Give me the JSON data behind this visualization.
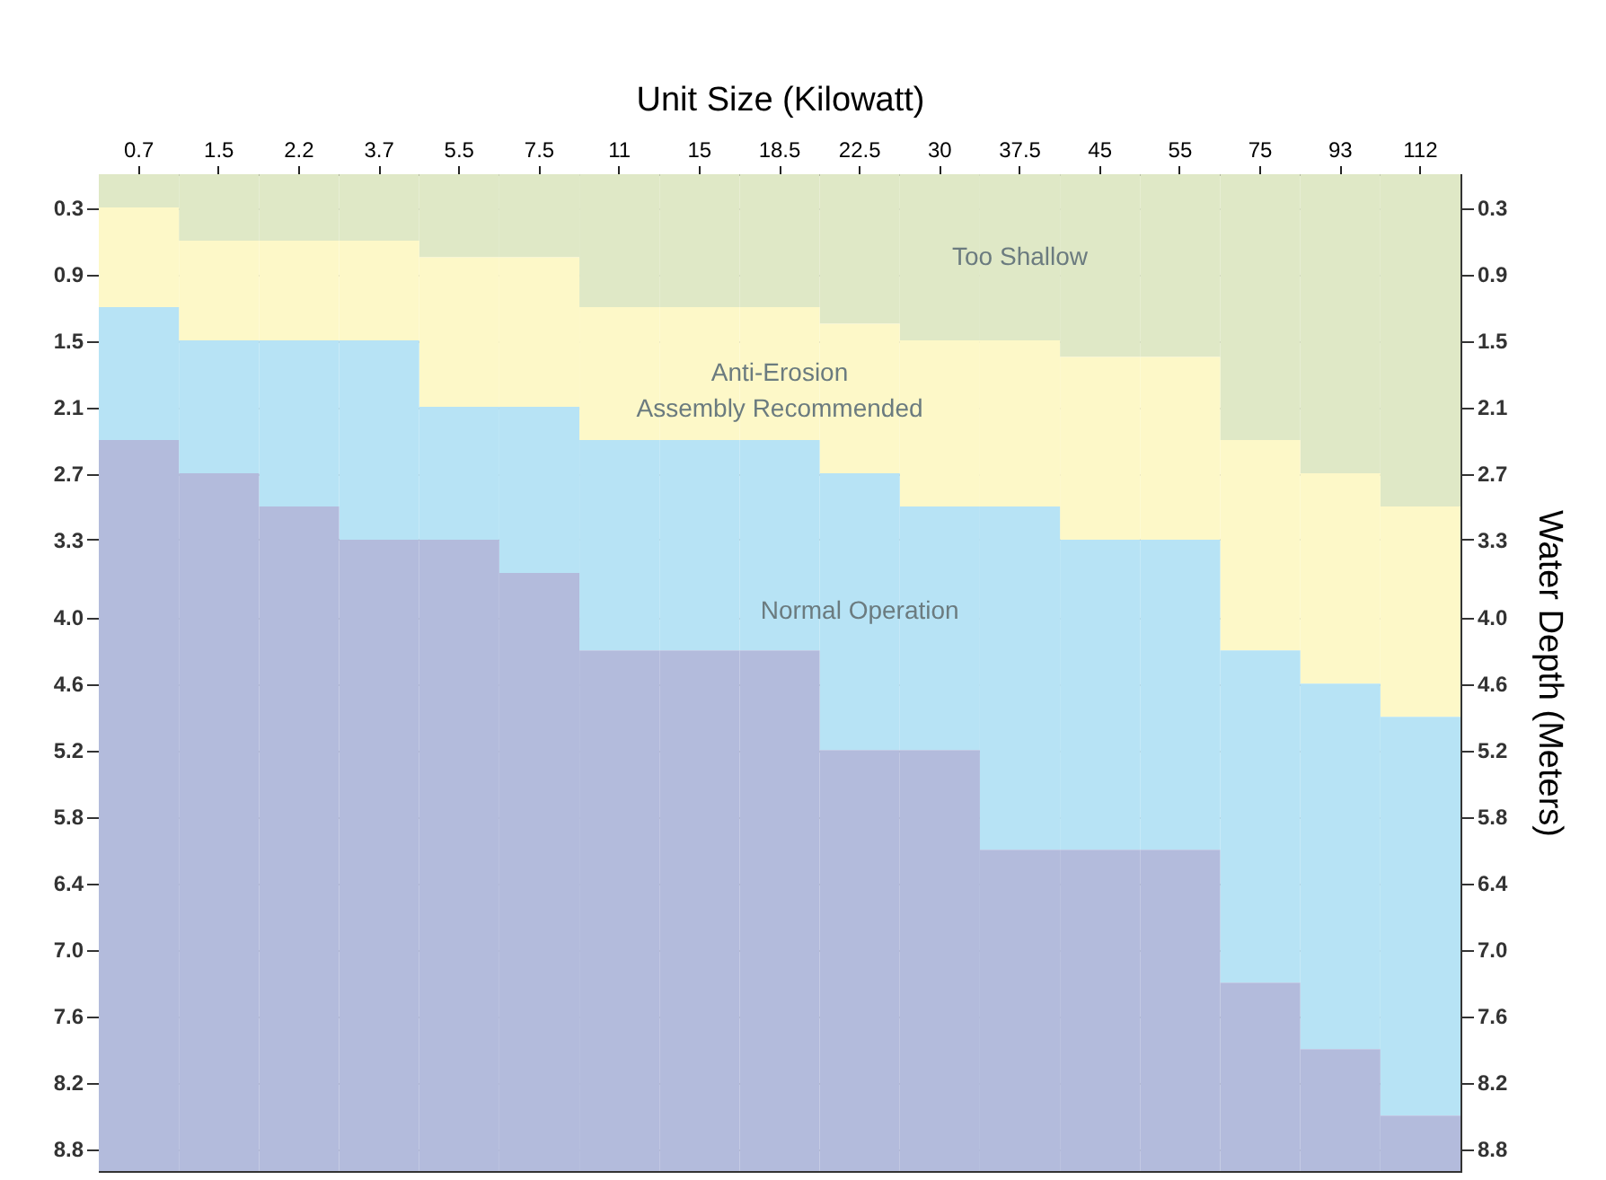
{
  "chart_data": {
    "type": "bar",
    "stacked": true,
    "xlabel": "Unit Size (Kilowatt)",
    "y2label": "Water Depth (Meters)",
    "categories": [
      "0.7",
      "1.5",
      "2.2",
      "3.7",
      "5.5",
      "7.5",
      "11",
      "15",
      "18.5",
      "22.5",
      "30",
      "37.5",
      "45",
      "55",
      "75",
      "93",
      "112"
    ],
    "series": [
      {
        "name": "Too Shallow",
        "color": "#dfe8c6",
        "values": [
          0.3,
          0.6,
          0.6,
          0.6,
          0.75,
          0.75,
          1.2,
          1.2,
          1.2,
          1.35,
          1.5,
          1.5,
          1.65,
          1.65,
          2.4,
          2.7,
          3.0
        ]
      },
      {
        "name": "Anti-Erosion Assembly Recommended",
        "color": "#fdf8c8",
        "values": [
          0.9,
          0.9,
          0.9,
          0.9,
          1.35,
          1.35,
          1.2,
          1.2,
          1.2,
          1.35,
          1.5,
          1.5,
          1.65,
          1.65,
          1.9,
          1.9,
          1.9
        ]
      },
      {
        "name": "Normal Operation",
        "color": "#b7e3f5",
        "values": [
          1.2,
          1.2,
          1.5,
          1.8,
          1.2,
          1.5,
          1.9,
          1.9,
          1.9,
          2.5,
          2.2,
          3.1,
          2.8,
          2.8,
          3.0,
          3.3,
          3.6
        ]
      },
      {
        "color": "#b3bbdc",
        "values": [
          6.6,
          6.3,
          6.0,
          5.7,
          5.7,
          5.4,
          4.7,
          4.7,
          4.7,
          3.8,
          3.8,
          2.9,
          2.9,
          2.9,
          1.7,
          1.1,
          0.5
        ]
      }
    ],
    "ylim": [
      9.0,
      0
    ],
    "yticks": [
      0.3,
      0.9,
      1.5,
      2.1,
      2.7,
      3.3,
      {
        "value": 4,
        "label": "4.0"
      },
      4.6,
      5.2,
      5.8,
      6.4,
      {
        "value": 7,
        "label": "7.0"
      },
      7.6,
      8.2,
      8.8
    ],
    "y2lim": [
      9.0,
      0
    ],
    "y2ticks": [
      0.3,
      0.9,
      1.5,
      2.1,
      2.7,
      3.3,
      {
        "value": 4,
        "label": "4.0"
      },
      4.6,
      5.2,
      5.8,
      6.4,
      {
        "value": 7,
        "label": "7.0"
      },
      7.6,
      8.2,
      8.8
    ],
    "grid": "y",
    "legend": false
  }
}
